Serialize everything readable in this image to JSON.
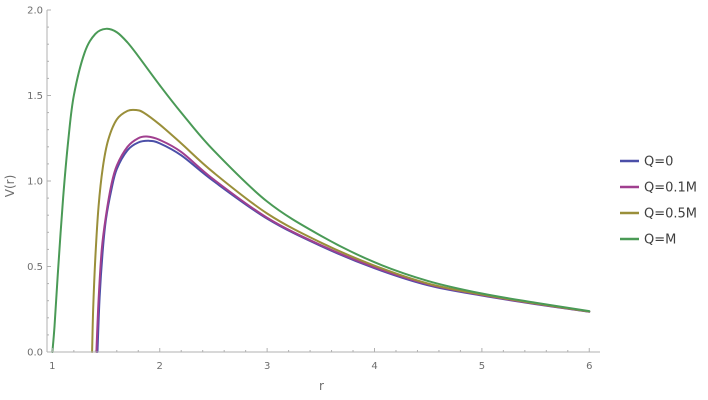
{
  "chart_data": {
    "type": "line",
    "title": "",
    "xlabel": "r",
    "ylabel": "V(r)",
    "xlim": [
      0.95,
      6.1
    ],
    "ylim": [
      0,
      2.0
    ],
    "x_ticks": [
      1,
      2,
      3,
      4,
      5,
      6
    ],
    "x_tick_labels": [
      "1",
      "2",
      "3",
      "4",
      "5",
      "6"
    ],
    "y_ticks": [
      0.0,
      0.5,
      1.0,
      1.5,
      2.0
    ],
    "y_tick_labels": [
      "0.0",
      "0.5",
      "1.0",
      "1.5",
      "2.0"
    ],
    "grid": false,
    "legend_position": "right",
    "series": [
      {
        "name": "Q=0",
        "color": "#4b4fa8",
        "x": [
          1.42,
          1.44,
          1.47,
          1.5,
          1.55,
          1.6,
          1.7,
          1.8,
          1.9,
          2.0,
          2.2,
          2.5,
          3.0,
          3.5,
          4.0,
          4.5,
          5.0,
          5.5,
          6.0
        ],
        "y": [
          0.0,
          0.32,
          0.6,
          0.78,
          0.95,
          1.07,
          1.18,
          1.225,
          1.235,
          1.22,
          1.15,
          1.0,
          0.78,
          0.62,
          0.49,
          0.39,
          0.33,
          0.28,
          0.235
        ]
      },
      {
        "name": "Q=0.1M",
        "color": "#a03f8f",
        "x": [
          1.41,
          1.43,
          1.46,
          1.5,
          1.55,
          1.6,
          1.7,
          1.8,
          1.88,
          2.0,
          2.2,
          2.5,
          3.0,
          3.5,
          4.0,
          4.5,
          5.0,
          5.5,
          6.0
        ],
        "y": [
          0.0,
          0.3,
          0.6,
          0.8,
          0.98,
          1.09,
          1.2,
          1.25,
          1.26,
          1.24,
          1.17,
          1.01,
          0.785,
          0.625,
          0.495,
          0.395,
          0.333,
          0.282,
          0.236
        ]
      },
      {
        "name": "Q=0.5M",
        "color": "#9a8f3a",
        "x": [
          1.37,
          1.38,
          1.4,
          1.43,
          1.47,
          1.52,
          1.6,
          1.7,
          1.78,
          1.85,
          2.0,
          2.2,
          2.5,
          3.0,
          3.5,
          4.0,
          4.5,
          5.0,
          5.5,
          6.0
        ],
        "y": [
          0.0,
          0.25,
          0.55,
          0.85,
          1.08,
          1.24,
          1.36,
          1.41,
          1.415,
          1.4,
          1.33,
          1.22,
          1.05,
          0.81,
          0.64,
          0.505,
          0.4,
          0.336,
          0.284,
          0.237
        ]
      },
      {
        "name": "Q=M",
        "color": "#4a9a56",
        "x": [
          1.0,
          1.02,
          1.05,
          1.1,
          1.15,
          1.2,
          1.3,
          1.4,
          1.5,
          1.6,
          1.7,
          1.8,
          2.0,
          2.2,
          2.5,
          3.0,
          3.5,
          4.0,
          4.5,
          5.0,
          5.5,
          6.0
        ],
        "y": [
          0.0,
          0.15,
          0.45,
          0.9,
          1.25,
          1.5,
          1.75,
          1.86,
          1.89,
          1.87,
          1.81,
          1.73,
          1.56,
          1.4,
          1.18,
          0.88,
          0.68,
          0.525,
          0.415,
          0.342,
          0.288,
          0.239
        ]
      }
    ]
  }
}
